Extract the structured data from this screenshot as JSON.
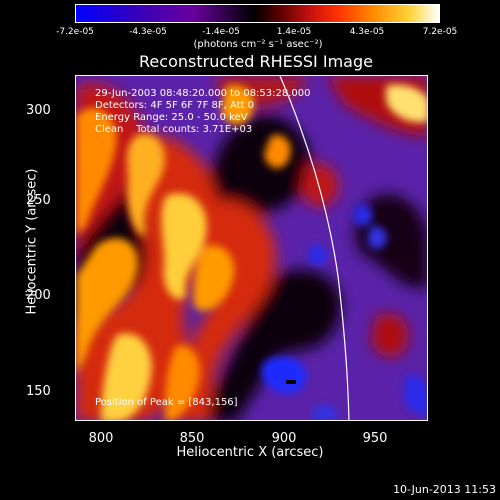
{
  "colorbar": {
    "ticks": [
      "-7.2e-05",
      "-4.3e-05",
      "-1.4e-05",
      "1.4e-05",
      "4.3e-05",
      "7.2e-05"
    ],
    "units": "(photons cm⁻² s⁻¹ asec⁻²)",
    "colors": [
      "#0000ff",
      "#6a00a0",
      "#000000",
      "#c01010",
      "#ff8c00",
      "#ffffff"
    ]
  },
  "title": "Reconstructed RHESSI Image",
  "annotations": {
    "time_range": "29-Jun-2003 08:48:20.000 to 08:53:28.000",
    "detectors": "Detectors: 4F 5F 6F 7F 8F, Att 0",
    "energy": "Energy Range: 25.0 - 50.0 keV",
    "clean": "Clean    Total counts: 3.71E+03",
    "peak": "Position of Peak = [843,156]"
  },
  "axes": {
    "xlabel": "Heliocentric X (arcsec)",
    "ylabel": "Heliocentric Y (arcsec)",
    "xticks": [
      "800",
      "850",
      "900",
      "950"
    ],
    "yticks": [
      "150",
      "200",
      "250",
      "300"
    ]
  },
  "date_stamp": "10-Jun-2013 11:53"
}
